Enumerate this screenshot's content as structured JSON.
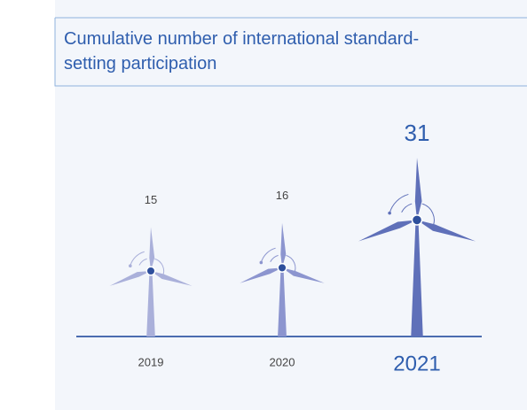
{
  "chart_data": {
    "type": "pictogram",
    "title": "Cumulative number of international standard-setting participation",
    "categories": [
      "2019",
      "2020",
      "2021"
    ],
    "values": [
      15,
      16,
      31
    ],
    "colors": [
      "#aab0da",
      "#8c95cf",
      "#5f70b9"
    ]
  }
}
